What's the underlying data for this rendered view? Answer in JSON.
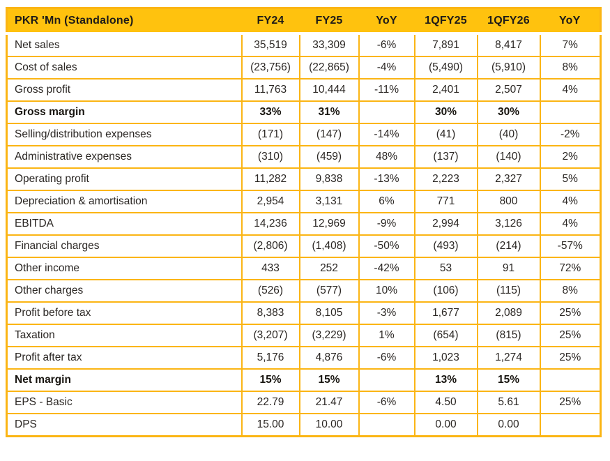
{
  "colors": {
    "header_bg": "#FFC20E",
    "grid_border": "#FBB514",
    "text": "#2B2724",
    "bold_text": "#17140F"
  },
  "chart_data": {
    "type": "table",
    "title": "PKR 'Mn (Standalone)",
    "columns": [
      "PKR 'Mn (Standalone)",
      "FY24",
      "FY25",
      "YoY",
      "1QFY25",
      "1QFY26",
      "YoY"
    ],
    "rows": [
      {
        "label": "Net sales",
        "bold": false,
        "values": [
          "35,519",
          "33,309",
          "-6%",
          "7,891",
          "8,417",
          "7%"
        ]
      },
      {
        "label": "Cost of sales",
        "bold": false,
        "values": [
          "(23,756)",
          "(22,865)",
          "-4%",
          "(5,490)",
          "(5,910)",
          "8%"
        ]
      },
      {
        "label": "Gross profit",
        "bold": false,
        "values": [
          "11,763",
          "10,444",
          "-11%",
          "2,401",
          "2,507",
          "4%"
        ]
      },
      {
        "label": "Gross margin",
        "bold": true,
        "values": [
          "33%",
          "31%",
          "",
          "30%",
          "30%",
          ""
        ]
      },
      {
        "label": "Selling/distribution expenses",
        "bold": false,
        "values": [
          "(171)",
          "(147)",
          "-14%",
          "(41)",
          "(40)",
          "-2%"
        ]
      },
      {
        "label": "Administrative expenses",
        "bold": false,
        "values": [
          "(310)",
          "(459)",
          "48%",
          "(137)",
          "(140)",
          "2%"
        ]
      },
      {
        "label": "Operating profit",
        "bold": false,
        "values": [
          "11,282",
          "9,838",
          "-13%",
          "2,223",
          "2,327",
          "5%"
        ]
      },
      {
        "label": "Depreciation & amortisation",
        "bold": false,
        "values": [
          "2,954",
          "3,131",
          "6%",
          "771",
          "800",
          "4%"
        ]
      },
      {
        "label": "EBITDA",
        "bold": false,
        "values": [
          "14,236",
          "12,969",
          "-9%",
          "2,994",
          "3,126",
          "4%"
        ]
      },
      {
        "label": "Financial charges",
        "bold": false,
        "values": [
          "(2,806)",
          "(1,408)",
          "-50%",
          "(493)",
          "(214)",
          "-57%"
        ]
      },
      {
        "label": "Other income",
        "bold": false,
        "values": [
          "433",
          "252",
          "-42%",
          "53",
          "91",
          "72%"
        ]
      },
      {
        "label": "Other charges",
        "bold": false,
        "values": [
          "(526)",
          "(577)",
          "10%",
          "(106)",
          "(115)",
          "8%"
        ]
      },
      {
        "label": "Profit before tax",
        "bold": false,
        "values": [
          "8,383",
          "8,105",
          "-3%",
          "1,677",
          "2,089",
          "25%"
        ]
      },
      {
        "label": "Taxation",
        "bold": false,
        "values": [
          "(3,207)",
          "(3,229)",
          "1%",
          "(654)",
          "(815)",
          "25%"
        ]
      },
      {
        "label": "Profit after tax",
        "bold": false,
        "values": [
          "5,176",
          "4,876",
          "-6%",
          "1,023",
          "1,274",
          "25%"
        ]
      },
      {
        "label": "Net margin",
        "bold": true,
        "values": [
          "15%",
          "15%",
          "",
          "13%",
          "15%",
          ""
        ]
      },
      {
        "label": "EPS - Basic",
        "bold": false,
        "values": [
          "22.79",
          "21.47",
          "-6%",
          "4.50",
          "5.61",
          "25%"
        ]
      },
      {
        "label": "DPS",
        "bold": false,
        "values": [
          "15.00",
          "10.00",
          "",
          "0.00",
          "0.00",
          ""
        ]
      }
    ]
  }
}
